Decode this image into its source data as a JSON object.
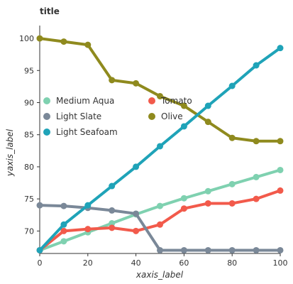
{
  "chart_data": {
    "type": "line",
    "title": "title",
    "xlabel": "xaxis_label",
    "ylabel": "yaxis_label",
    "xlim": [
      0,
      100
    ],
    "ylim": [
      66.5,
      102
    ],
    "xticks": [
      0,
      20,
      40,
      60,
      80,
      100
    ],
    "yticks": [
      70,
      75,
      80,
      85,
      90,
      95,
      100
    ],
    "grid": false,
    "legend": {
      "position": "inside-center",
      "columns": 2
    },
    "series": [
      {
        "name": "Medium Aqua",
        "color": "#7fd1b0",
        "x": [
          0,
          10,
          20,
          30,
          40,
          50,
          60,
          70,
          80,
          90,
          100
        ],
        "y": [
          67.0,
          68.4,
          69.8,
          71.2,
          72.6,
          73.9,
          75.1,
          76.2,
          77.3,
          78.4,
          79.5
        ]
      },
      {
        "name": "Tomato",
        "color": "#f25a4b",
        "x": [
          0,
          10,
          20,
          30,
          40,
          50,
          60,
          70,
          80,
          90,
          100
        ],
        "y": [
          67.0,
          70.0,
          70.3,
          70.5,
          70.0,
          71.0,
          73.5,
          74.3,
          74.3,
          75.0,
          76.3
        ]
      },
      {
        "name": "Light Slate",
        "color": "#7a8898",
        "x": [
          0,
          10,
          20,
          30,
          40,
          50,
          60,
          70,
          80,
          90,
          100
        ],
        "y": [
          74.0,
          73.9,
          73.6,
          73.2,
          72.7,
          67.0,
          67.0,
          67.0,
          67.0,
          67.0,
          67.0
        ]
      },
      {
        "name": "Olive",
        "color": "#8f8a1e",
        "x": [
          0,
          10,
          20,
          30,
          40,
          50,
          60,
          70,
          80,
          90,
          100
        ],
        "y": [
          100.0,
          99.5,
          99.0,
          93.5,
          93.0,
          91.0,
          89.5,
          87.0,
          84.5,
          84.0,
          84.0
        ]
      },
      {
        "name": "Light Seafoam",
        "color": "#1fa3b8",
        "x": [
          0,
          10,
          20,
          30,
          40,
          50,
          60,
          70,
          80,
          90,
          100
        ],
        "y": [
          67.0,
          71.0,
          74.0,
          77.0,
          80.0,
          83.2,
          86.3,
          89.5,
          92.6,
          95.8,
          98.5
        ]
      }
    ]
  }
}
